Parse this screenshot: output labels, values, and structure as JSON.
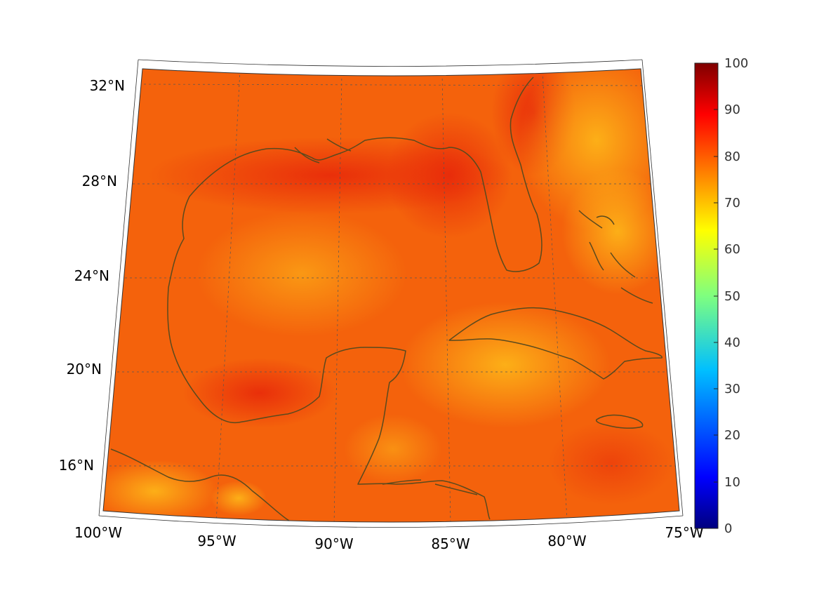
{
  "map": {
    "lon_ticks": [
      "100°W",
      "95°W",
      "90°W",
      "85°W",
      "80°W",
      "75°W"
    ],
    "lat_ticks": [
      "32°N",
      "28°N",
      "24°N",
      "20°N",
      "16°N"
    ],
    "colors": {
      "coastline": "#5a4a1e",
      "grid": "#555555",
      "frame": "#333333"
    },
    "field_palette": [
      "#e73a08",
      "#f05a0a",
      "#f77a10",
      "#fb9a14",
      "#ffc21a",
      "#ffe020"
    ]
  },
  "colorbar": {
    "ticks": [
      "100",
      "90",
      "80",
      "70",
      "60",
      "50",
      "40",
      "30",
      "20",
      "10",
      "0"
    ],
    "range": [
      0,
      100
    ],
    "colormap": "jet"
  }
}
